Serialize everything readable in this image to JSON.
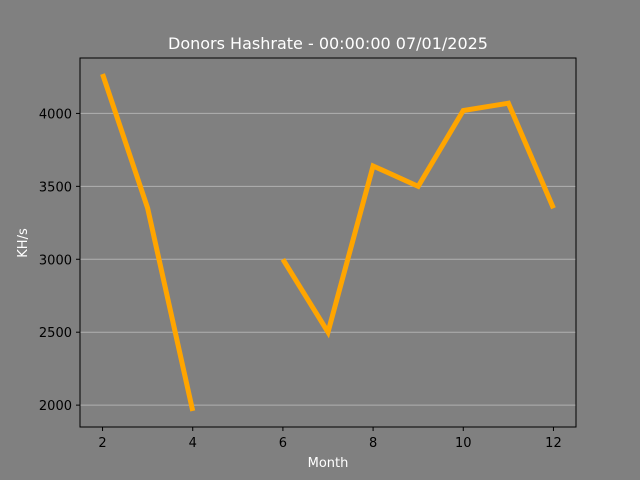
{
  "chart_data": {
    "type": "line",
    "title": "Donors Hashrate - 00:00:00 07/01/2025",
    "xlabel": "Month",
    "ylabel": "KH/s",
    "xlim": [
      1.5,
      12.5
    ],
    "ylim": [
      1850,
      4380
    ],
    "xticks": [
      2,
      4,
      6,
      8,
      10,
      12
    ],
    "yticks": [
      2000,
      2500,
      3000,
      3500,
      4000
    ],
    "grid": "y",
    "series": [
      {
        "color": "#ffa500",
        "points": [
          [
            2,
            4270
          ],
          [
            3,
            3350
          ],
          [
            4,
            1960
          ],
          [
            5,
            null
          ],
          [
            6,
            3000
          ],
          [
            7,
            2500
          ],
          [
            8,
            3640
          ],
          [
            9,
            3500
          ],
          [
            10,
            4020
          ],
          [
            11,
            4070
          ],
          [
            12,
            3350
          ]
        ]
      }
    ]
  },
  "colors": {
    "figure_bg": "#808080",
    "axes_bg": "#808080",
    "grid": "#b0b0b0",
    "line": "#ffa500"
  }
}
